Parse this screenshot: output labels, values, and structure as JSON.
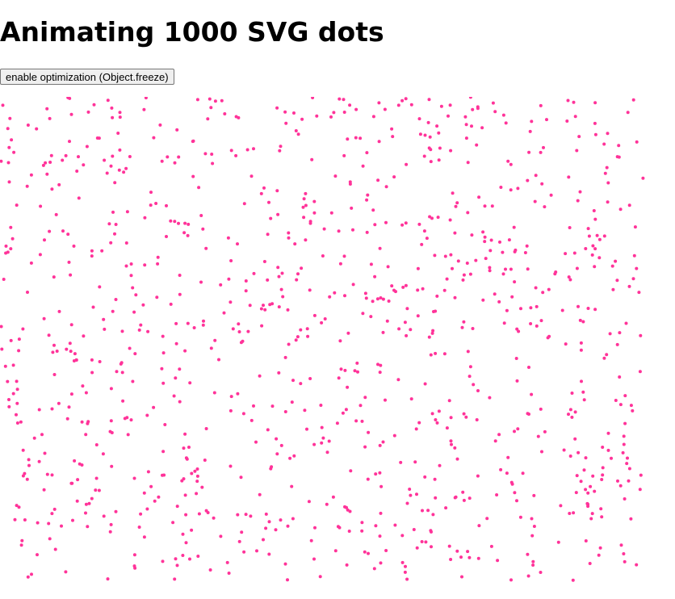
{
  "header": {
    "title": "Animating 1000 SVG dots"
  },
  "button": {
    "label": "enable optimization (Object.freeze)"
  }
}
